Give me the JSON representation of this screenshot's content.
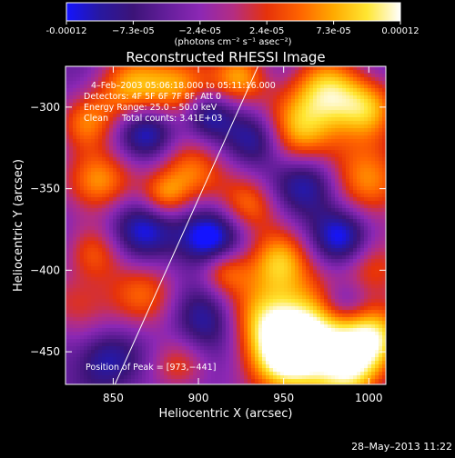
{
  "chart_data": {
    "type": "heatmap",
    "title": "Reconstructed RHESSI Image",
    "xlabel": "Heliocentric X (arcsec)",
    "ylabel": "Heliocentric Y (arcsec)",
    "xlim": [
      822,
      1010
    ],
    "ylim": [
      -470,
      -275
    ],
    "x_ticks": [
      850,
      900,
      950,
      1000
    ],
    "y_ticks": [
      -300,
      -350,
      -400,
      -450
    ],
    "colorbar": {
      "min": -0.00012,
      "max": 0.00012,
      "tick_labels": [
        "-0.00012",
        "−7.3e-05",
        "−2.4e-05",
        "2.4e-05",
        "7.3e-05",
        "0.00012"
      ],
      "units_label": "(photons cm⁻² s⁻¹ asec⁻²)",
      "colormap_stops": [
        "#1414ff",
        "#2818a0",
        "#3c1478",
        "#641e9b",
        "#8c28b4",
        "#b42d82",
        "#e6320a",
        "#ff6400",
        "#ffaa00",
        "#ffe632",
        "#ffffff"
      ]
    },
    "annotations": [
      "4–Feb–2003 05:06:18.000 to 05:11:16.000",
      "Detectors: 4F 5F 6F 7F 8F, Att 0",
      "Energy Range: 25.0 – 50.0 keV",
      "Clean     Total counts: 3.41E+03"
    ],
    "peak_label": "Position of Peak = [973,−441]",
    "peak": {
      "x": 973,
      "y": -441
    },
    "limb_line": [
      {
        "x": 851,
        "y": -470
      },
      {
        "x": 935,
        "y": -275
      }
    ]
  },
  "footer": {
    "timestamp": "28–May–2013 11:22"
  }
}
